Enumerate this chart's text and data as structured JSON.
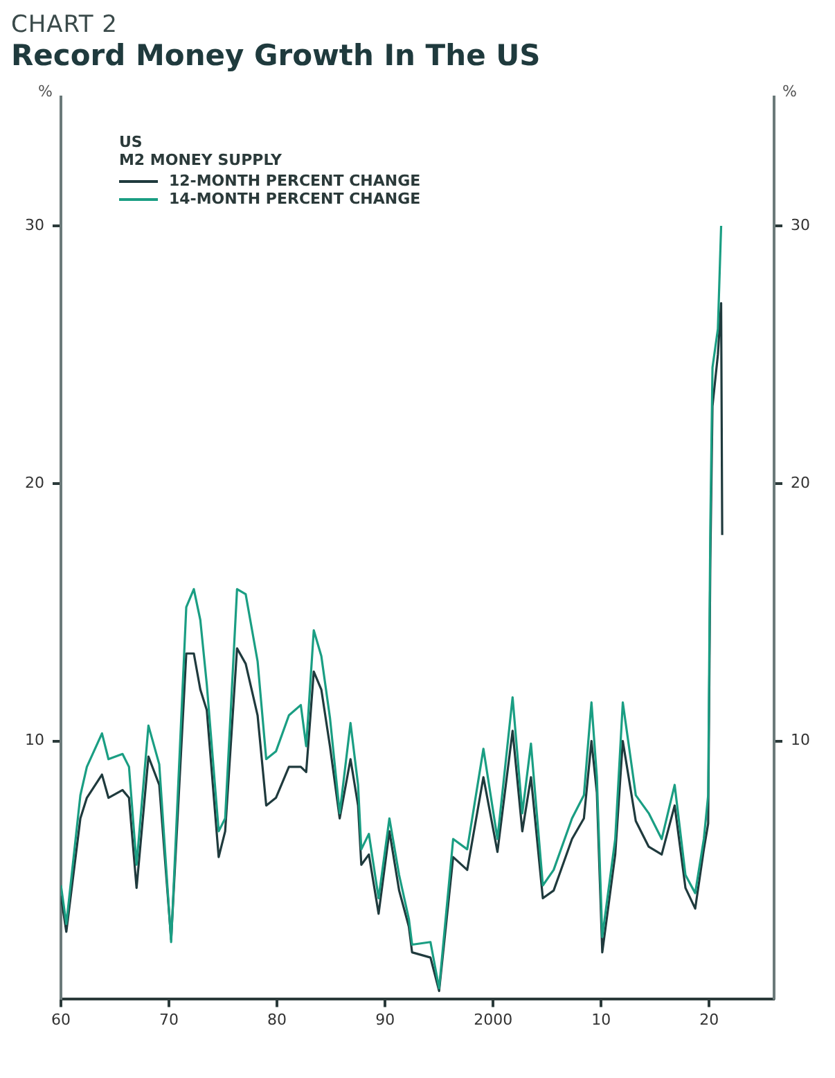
{
  "chart_data": {
    "type": "line",
    "subtitle": "CHART 2",
    "title": "Record Money Growth In The US",
    "ylabel": "%",
    "y2label": "%",
    "legend_title": "US\nM2 MONEY SUPPLY",
    "legend": "top left",
    "grid": false,
    "marker": "none",
    "line_style": "solid",
    "x": [
      1960,
      1960.5,
      1961.8,
      1962.4,
      1963.8,
      1964.4,
      1965.7,
      1966.3,
      1967,
      1968.1,
      1969.1,
      1970.2,
      1971.6,
      1972.3,
      1972.9,
      1973.5,
      1974.6,
      1975.2,
      1976.3,
      1977.1,
      1978.2,
      1979,
      1979.9,
      1981.1,
      1982.2,
      1982.7,
      1983.4,
      1984.1,
      1984.9,
      1985.8,
      1986.8,
      1987.5,
      1987.8,
      1988.5,
      1989.4,
      1990.4,
      1991.3,
      1992.2,
      1992.5,
      1994.2,
      1995,
      1996.3,
      1997.6,
      1999.1,
      2000.4,
      2001.8,
      2002.7,
      2003.5,
      2004.6,
      2005.6,
      2007.3,
      2008.4,
      2009.1,
      2009.6,
      2010.1,
      2011.3,
      2012,
      2013.2,
      2014.4,
      2015.6,
      2016.8,
      2017.8,
      2018.7,
      2019.5,
      2019.9,
      2020.1,
      2020.3,
      2020.8,
      2021.1,
      2021.2
    ],
    "series": [
      {
        "name": "12-MONTH PERCENT CHANGE",
        "color": "#1f3a3d",
        "values": [
          4.0,
          2.6,
          7.0,
          7.8,
          8.7,
          7.8,
          8.1,
          7.8,
          4.3,
          9.4,
          8.3,
          2.3,
          13.4,
          13.4,
          12.0,
          11.2,
          5.5,
          6.5,
          13.6,
          13.0,
          11.0,
          7.5,
          7.8,
          9.0,
          9.0,
          8.8,
          12.7,
          12.0,
          9.8,
          7.0,
          9.3,
          7.5,
          5.2,
          5.6,
          3.3,
          6.5,
          4.2,
          2.8,
          1.8,
          1.6,
          0.3,
          5.5,
          5.0,
          8.6,
          5.7,
          10.4,
          6.5,
          8.6,
          3.9,
          4.2,
          6.2,
          7.0,
          10.0,
          8.0,
          1.8,
          5.6,
          10.0,
          6.9,
          5.9,
          5.6,
          7.5,
          4.3,
          3.5,
          5.8,
          6.8,
          17,
          23,
          25,
          27,
          18
        ]
      },
      {
        "name": "14-MONTH PERCENT CHANGE",
        "color": "#1a9e83",
        "values": [
          4.4,
          2.9,
          7.9,
          9.0,
          10.3,
          9.3,
          9.5,
          9.0,
          5.2,
          10.6,
          9.1,
          2.2,
          15.2,
          15.9,
          14.7,
          12.2,
          6.5,
          7.0,
          15.9,
          15.7,
          13.1,
          9.3,
          9.6,
          11.0,
          11.4,
          9.8,
          14.3,
          13.3,
          10.9,
          7.2,
          10.7,
          8.3,
          5.8,
          6.4,
          3.9,
          7.0,
          4.8,
          3.1,
          2.1,
          2.2,
          0.4,
          6.2,
          5.8,
          9.7,
          6.2,
          11.7,
          7.2,
          9.9,
          4.4,
          5.0,
          7.0,
          7.9,
          11.5,
          8.6,
          2.4,
          6.2,
          11.5,
          7.9,
          7.2,
          6.2,
          8.3,
          4.8,
          4.1,
          6.2,
          7.9,
          18.3,
          24.5,
          26,
          30,
          null
        ]
      }
    ],
    "xlim": [
      1960,
      2026
    ],
    "xticks": [
      {
        "value": 1960,
        "label": "60"
      },
      {
        "value": 1970,
        "label": "70"
      },
      {
        "value": 1980,
        "label": "80"
      },
      {
        "value": 1990,
        "label": "90"
      },
      {
        "value": 2000,
        "label": "2000"
      },
      {
        "value": 2010,
        "label": "10"
      },
      {
        "value": 2020,
        "label": "20"
      }
    ],
    "ylim": [
      0,
      35
    ],
    "yticks": [
      10,
      20,
      30
    ],
    "y2lim": [
      0,
      35
    ],
    "y2ticks": [
      10,
      20,
      30
    ]
  }
}
